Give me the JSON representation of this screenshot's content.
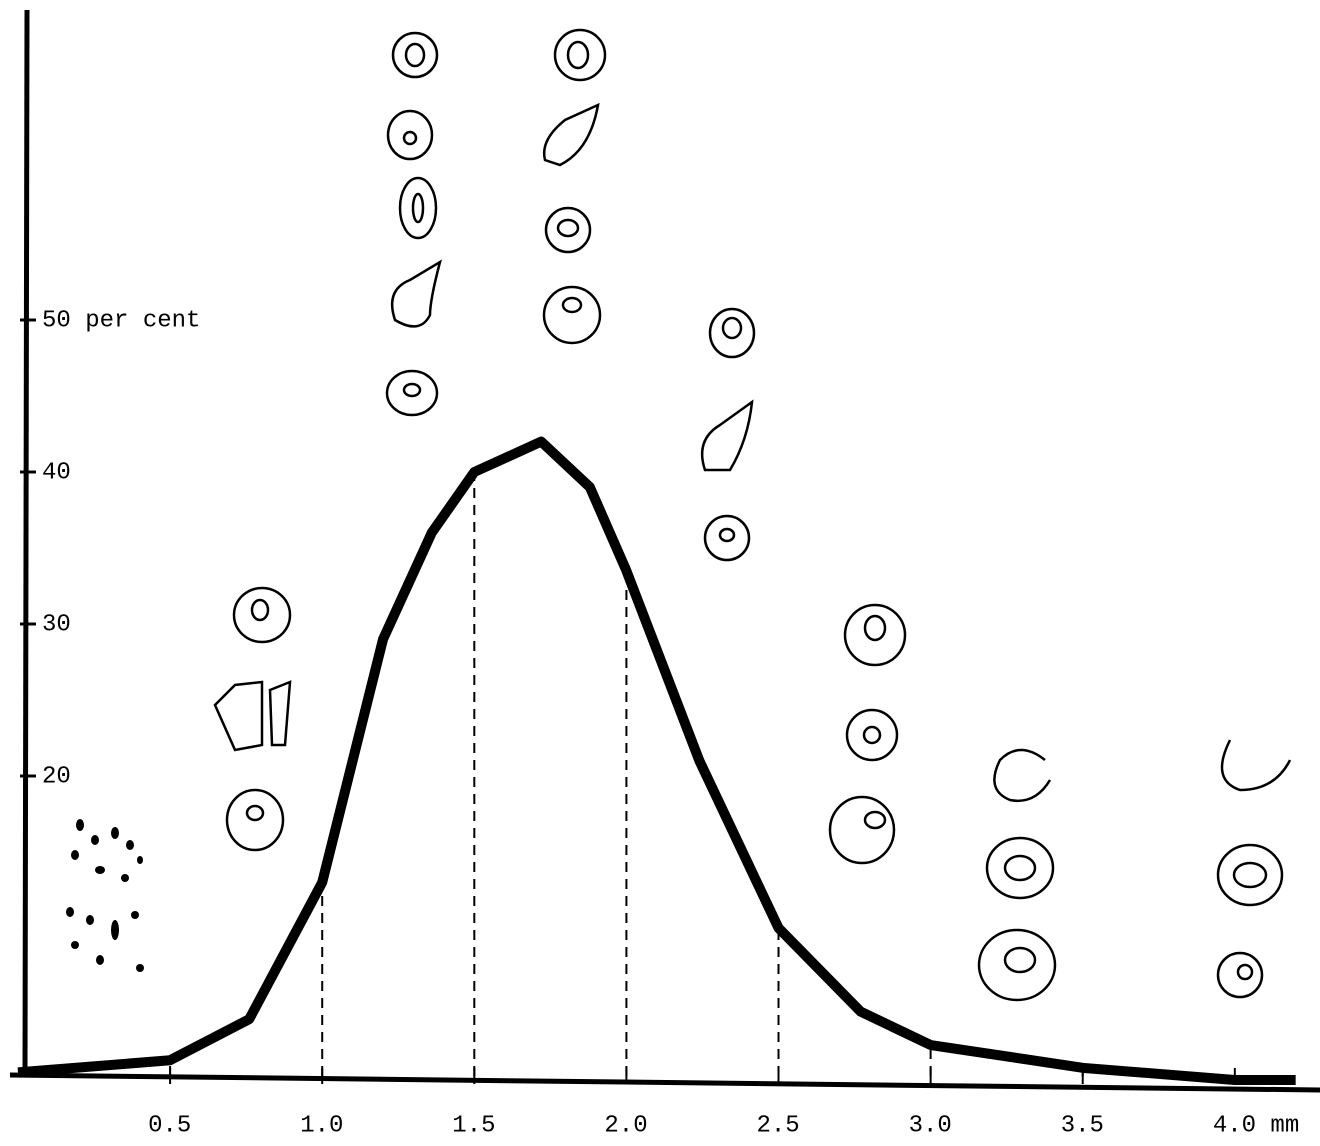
{
  "chart_data": {
    "type": "line",
    "x": [
      0,
      0.5,
      0.76,
      1.0,
      1.2,
      1.36,
      1.5,
      1.72,
      1.88,
      2.0,
      2.24,
      2.5,
      2.77,
      3.0,
      3.5,
      4.0,
      4.2
    ],
    "series": [
      {
        "color": "#000000",
        "values": [
          0.5,
          1.3,
          4,
          13,
          29,
          36,
          40,
          42,
          39,
          33.5,
          21,
          10,
          4.5,
          2.3,
          0.8,
          0,
          0
        ]
      }
    ],
    "xlim": [
      0,
      4.28
    ],
    "ylim": [
      0,
      70
    ],
    "xticks": [
      0.5,
      {
        "value": 1,
        "label": "1.0"
      },
      1.5,
      {
        "value": 2,
        "label": "2.0"
      },
      2.5,
      {
        "value": 3,
        "label": "3.0"
      },
      3.5,
      {
        "value": 4,
        "label": "4.0 mm"
      }
    ],
    "yticks": [
      {
        "value": 50,
        "label": "50 per cent"
      },
      40,
      30,
      20
    ],
    "grid": false
  }
}
